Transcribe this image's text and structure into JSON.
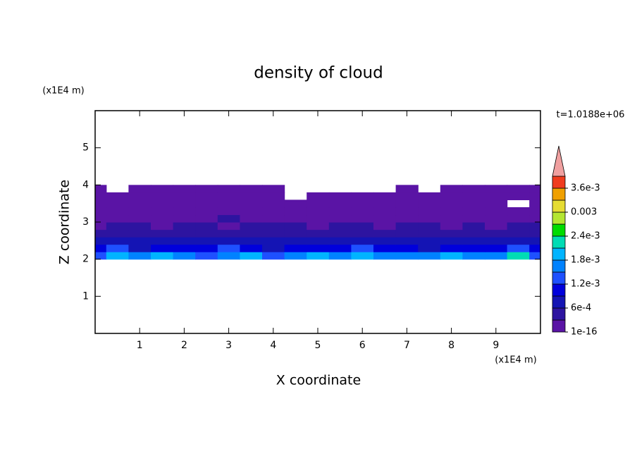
{
  "chart_data": {
    "type": "contourf",
    "title": "density of cloud",
    "x_label": "X coordinate",
    "y_label": "Z coordinate",
    "x_unit": "(x1E4 m)",
    "y_unit": "(x1E4 m)",
    "annotation": "t=1.0188e+06",
    "xlim": [
      0,
      10
    ],
    "ylim": [
      0,
      6
    ],
    "xticks": [
      1,
      2,
      3,
      4,
      5,
      6,
      7,
      8,
      9
    ],
    "yticks": [
      1,
      2,
      3,
      4,
      5
    ],
    "x": [
      0,
      0.5,
      1,
      1.5,
      2,
      2.5,
      3,
      3.5,
      4,
      4.5,
      5,
      5.5,
      6,
      6.5,
      7,
      7.5,
      8,
      8.5,
      9,
      9.5,
      10
    ],
    "z": [
      2.1,
      2.3,
      2.5,
      2.7,
      2.9,
      3.1,
      3.3,
      3.5,
      3.7,
      3.9
    ],
    "values": [
      [
        0.0013,
        0.0019,
        0.0015,
        0.0019,
        0.0016,
        0.0014,
        0.0015,
        0.0019,
        0.0014,
        0.0016,
        0.0019,
        0.0015,
        0.0019,
        0.0016,
        0.0015,
        0.0017,
        0.0019,
        0.0016,
        0.0015,
        0.0022,
        0.0014
      ],
      [
        0.0009,
        0.0012,
        0.0008,
        0.0011,
        0.0009,
        0.001,
        0.0012,
        0.0009,
        0.0008,
        0.001,
        0.0009,
        0.0011,
        0.0012,
        0.001,
        0.0009,
        0.0008,
        0.001,
        0.0009,
        0.0011,
        0.0012,
        0.0009
      ],
      [
        0.0006,
        0.0007,
        0.0006,
        0.0008,
        0.0007,
        0.0006,
        0.0007,
        0.0006,
        0.0008,
        0.0006,
        0.0007,
        0.0006,
        0.0007,
        0.0008,
        0.0006,
        0.0007,
        0.0006,
        0.0007,
        0.0008,
        0.0006,
        0.0007
      ],
      [
        0.00045,
        0.0004,
        0.0005,
        0.00035,
        0.0004,
        0.00045,
        0.0005,
        0.0004,
        0.00035,
        0.0004,
        0.00045,
        0.0004,
        0.0005,
        0.00045,
        0.0004,
        0.00035,
        0.0004,
        0.00045,
        0.0005,
        0.0004,
        0.00045
      ],
      [
        0.00025,
        0.0003,
        0.00035,
        0.00025,
        0.0003,
        0.00032,
        0.00025,
        0.0003,
        0.00035,
        0.0003,
        0.00025,
        0.0003,
        0.00032,
        0.00025,
        0.0003,
        0.00035,
        0.00025,
        0.0003,
        0.00025,
        0.0003,
        0.00035
      ],
      [
        0.0002,
        0.00025,
        0.00015,
        0.0002,
        0.00025,
        0.0002,
        0.00031,
        0.0002,
        0.00015,
        0.0002,
        0.00025,
        0.0002,
        0.00015,
        0.0002,
        0.00025,
        0.0002,
        0.00015,
        0.0002,
        0.00025,
        0.0002,
        0.00015
      ],
      [
        0.0001,
        0.00015,
        0.0001,
        0.0002,
        0.00015,
        0.0001,
        0.00015,
        0.0001,
        0.0002,
        0.0001,
        0.00015,
        0.0001,
        0.0002,
        0.0001,
        0.00015,
        0.0001,
        0.0002,
        0.00015,
        0.0001,
        0.00015,
        0.0001
      ],
      [
        0.0001,
        5e-05,
        0.0001,
        5e-05,
        0.0001,
        5e-05,
        0.0001,
        5e-05,
        0.0001,
        5e-05,
        0.0001,
        5e-05,
        0.0001,
        5e-05,
        0.0001,
        5e-05,
        0.0001,
        5e-05,
        0.0001,
        null,
        0.0001
      ],
      [
        3e-05,
        5e-05,
        3e-05,
        5e-05,
        3e-05,
        5e-05,
        3e-05,
        5e-05,
        3e-05,
        null,
        3e-05,
        5e-05,
        3e-05,
        5e-05,
        3e-05,
        5e-05,
        3e-05,
        5e-05,
        3e-05,
        5e-05,
        3e-05
      ],
      [
        1e-05,
        null,
        1e-05,
        1e-05,
        1e-05,
        1e-05,
        1e-05,
        1e-05,
        1e-05,
        null,
        null,
        null,
        null,
        null,
        1e-05,
        null,
        1e-05,
        1e-05,
        1e-05,
        1e-05,
        1e-05
      ]
    ],
    "levels": [
      1e-16,
      0.0003,
      0.0006,
      0.0009,
      0.0012,
      0.0015,
      0.0018,
      0.0021,
      0.0024,
      0.0027,
      0.003,
      0.0033,
      0.0036,
      0.0039
    ],
    "colors": [
      "#5a14a5",
      "#2d14a0",
      "#1414b4",
      "#0000dc",
      "#1e50ff",
      "#0082ff",
      "#00b4ff",
      "#00dcb4",
      "#00dc00",
      "#b4e632",
      "#e6dc32",
      "#f0a000",
      "#f03c1e",
      "#f0a0a0"
    ],
    "colorbar_ticks": [
      1e-16,
      {
        "value": 0.0006,
        "label": "6e-4"
      },
      {
        "value": 0.0012,
        "label": "1.2e-3"
      },
      {
        "value": 0.0018,
        "label": "1.8e-3"
      },
      {
        "value": 0.0024,
        "label": "2.4e-3"
      },
      0.003,
      {
        "value": 0.0036,
        "label": "3.6e-3"
      }
    ]
  }
}
